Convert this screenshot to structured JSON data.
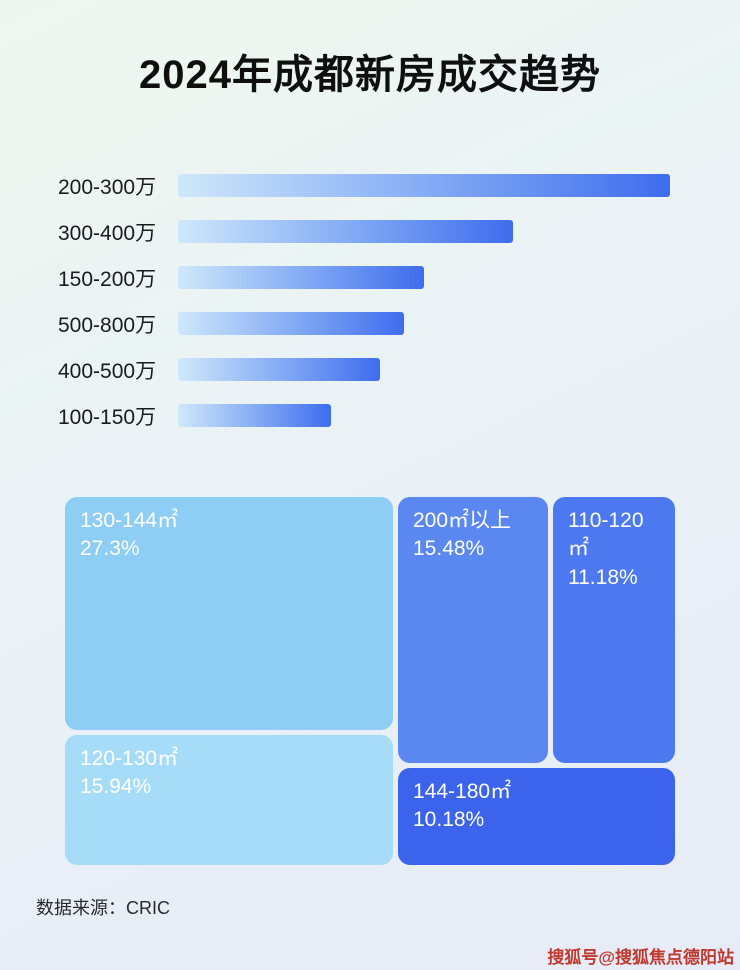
{
  "title": "2024年成都新房成交趋势",
  "source": "数据来源：CRIC",
  "watermark": "搜狐号@搜狐焦点德阳站",
  "chart_data": [
    {
      "type": "bar",
      "orientation": "horizontal",
      "title": "2024年成都新房成交趋势",
      "categories": [
        "200-300万",
        "300-400万",
        "150-200万",
        "500-800万",
        "400-500万",
        "100-150万"
      ],
      "values": [
        100,
        68,
        50,
        46,
        41,
        31
      ],
      "xlabel": "",
      "ylabel": "",
      "grid": false,
      "legend": false,
      "note": "no value axis shown; values are relative bar lengths (% of longest bar), estimated from pixels"
    },
    {
      "type": "treemap",
      "items": [
        {
          "label": "130-144㎡",
          "value": 27.3,
          "display": "27.3%"
        },
        {
          "label": "200㎡以上",
          "value": 15.48,
          "display": "15.48%"
        },
        {
          "label": "110-120㎡",
          "value": 11.18,
          "display": "11.18%"
        },
        {
          "label": "120-130㎡",
          "value": 15.94,
          "display": "15.94%"
        },
        {
          "label": "144-180㎡",
          "value": 10.18,
          "display": "10.18%"
        }
      ],
      "colors": {
        "block_130_144": "#8ecdf4",
        "block_200_plus": "#5b88f0",
        "block_110_120": "#4c79ef",
        "block_120_130": "#a6dcf8",
        "block_144_180": "#3c63ec",
        "bar_gradient_start": "#cfe8fb",
        "bar_gradient_end": "#3f6cee",
        "watermark_red": "#c0392f"
      }
    }
  ]
}
